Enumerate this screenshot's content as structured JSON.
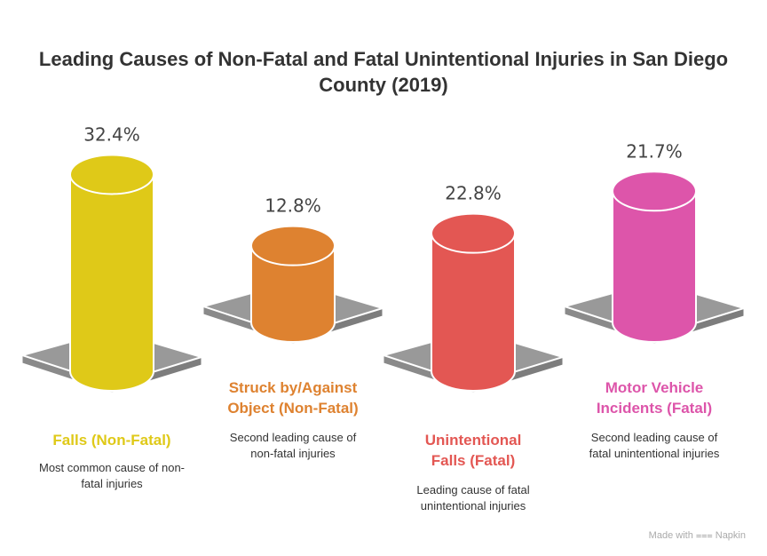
{
  "chart_data": {
    "type": "bar",
    "title": "Leading Causes of Non-Fatal and Fatal Unintentional Injuries in San Diego County (2019)",
    "categories": [
      "Falls (Non-Fatal)",
      "Struck by/Against Object (Non-Fatal)",
      "Unintentional Falls (Fatal)",
      "Motor Vehicle Incidents (Fatal)"
    ],
    "values": [
      32.4,
      12.8,
      22.8,
      21.7
    ],
    "value_labels": [
      "32.4%",
      "12.8%",
      "22.8%",
      "21.7%"
    ],
    "descriptions": [
      "Most common cause of non-fatal injuries",
      "Second leading cause of non-fatal injuries",
      "Leading cause of fatal unintentional injuries",
      "Second leading cause of fatal unintentional injuries"
    ],
    "colors": [
      "#DFC918",
      "#DE8230",
      "#E35753",
      "#DD55AA"
    ],
    "plate_color": "#999999"
  },
  "credit": "Made with ⩶ Napkin"
}
